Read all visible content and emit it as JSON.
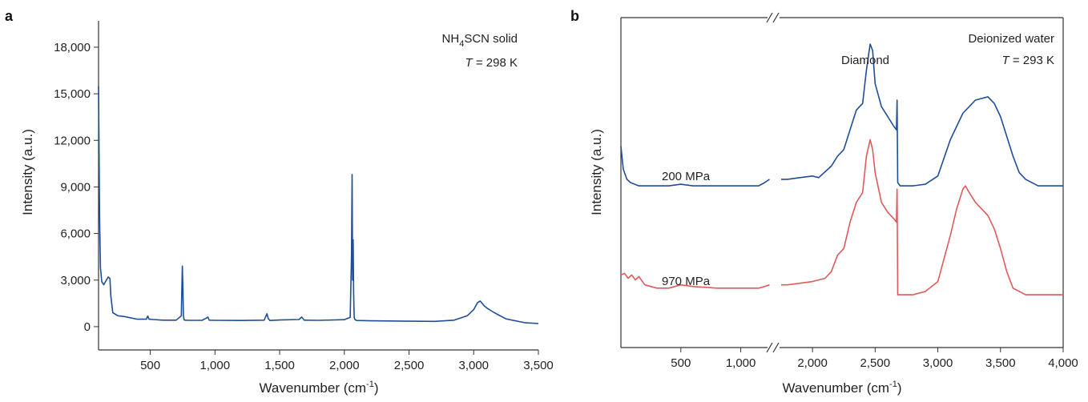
{
  "chart_data": [
    {
      "type": "line",
      "panel": "a",
      "xlabel": "Wavenumber (cm",
      "xlabel_sup": "-1",
      "xlabel_close": ")",
      "ylabel": "Intensity (a.u.)",
      "xlim": [
        100,
        3500
      ],
      "ylim": [
        -1500,
        19700
      ],
      "xticks": [
        500,
        1000,
        1500,
        2000,
        2500,
        3000,
        3500
      ],
      "xtick_labels": [
        "500",
        "1,000",
        "1,500",
        "2,000",
        "2,500",
        "3,000",
        "3,500"
      ],
      "yticks": [
        0,
        3000,
        6000,
        9000,
        12000,
        15000,
        18000
      ],
      "ytick_labels": [
        "0",
        "3,000",
        "6,000",
        "9,000",
        "12,000",
        "15,000",
        "18,000"
      ],
      "annotation": {
        "sample_prefix": "NH",
        "sample_sub": "4",
        "sample_suffix": "SCN solid",
        "temp_symbol": "T",
        "temp_value": " = 298 K"
      },
      "series": [
        {
          "name": "NH4SCN solid",
          "color": "#1f4e96",
          "x": [
            100,
            108,
            115,
            125,
            140,
            160,
            175,
            188,
            195,
            210,
            250,
            300,
            400,
            470,
            480,
            490,
            520,
            600,
            700,
            740,
            748,
            752,
            756,
            762,
            770,
            800,
            900,
            935,
            945,
            955,
            1000,
            1200,
            1380,
            1402,
            1412,
            1425,
            1500,
            1650,
            1670,
            1690,
            1800,
            2000,
            2045,
            2055,
            2060,
            2064,
            2068,
            2072,
            2076,
            2082,
            2095,
            2200,
            2500,
            2700,
            2850,
            2950,
            3000,
            3030,
            3050,
            3080,
            3110,
            3160,
            3250,
            3400,
            3500
          ],
          "y": [
            15500,
            7000,
            3800,
            2900,
            2700,
            3000,
            3200,
            3100,
            2000,
            900,
            700,
            650,
            480,
            480,
            680,
            480,
            460,
            420,
            420,
            700,
            3900,
            2500,
            700,
            430,
            420,
            410,
            410,
            560,
            620,
            420,
            410,
            400,
            420,
            830,
            520,
            400,
            430,
            460,
            620,
            420,
            410,
            450,
            600,
            4500,
            9800,
            3000,
            5600,
            2200,
            600,
            460,
            400,
            380,
            350,
            340,
            420,
            700,
            1100,
            1550,
            1650,
            1350,
            1150,
            900,
            500,
            250,
            200
          ]
        }
      ]
    },
    {
      "type": "line",
      "panel": "b",
      "xlabel": "Wavenumber (cm",
      "xlabel_sup": "-1",
      "xlabel_close": ")",
      "ylabel": "Intensity (a.u.)",
      "axis_break": "//",
      "segments": [
        {
          "xmin": 0,
          "xmax": 1250,
          "ticks": [
            500,
            1000
          ],
          "tick_labels": [
            "500",
            "1,000"
          ]
        },
        {
          "xmin": 1750,
          "xmax": 4000,
          "ticks": [
            2000,
            2500,
            3000,
            3500,
            4000
          ],
          "tick_labels": [
            "2,000",
            "2,500",
            "3,000",
            "3,500",
            "4,000"
          ]
        }
      ],
      "ylim": [
        0,
        100
      ],
      "peak_label": "Diamond",
      "annotation": {
        "sample": "Deionized water",
        "temp_symbol": "T",
        "temp_value": " = 293 K"
      },
      "series": [
        {
          "name": "200 MPa",
          "color": "#1f4e96",
          "x": [
            0,
            20,
            50,
            80,
            150,
            250,
            400,
            500,
            600,
            800,
            1000,
            1150,
            1200,
            1240,
            1750,
            1800,
            1900,
            2000,
            2050,
            2150,
            2200,
            2250,
            2300,
            2350,
            2400,
            2430,
            2460,
            2480,
            2500,
            2550,
            2600,
            2650,
            2670,
            2675,
            2680,
            2700,
            2800,
            2900,
            3000,
            3100,
            3200,
            3300,
            3400,
            3450,
            3500,
            3550,
            3600,
            3650,
            3700,
            3800,
            3900,
            4000
          ],
          "y": [
            61,
            54,
            51,
            50,
            49,
            49,
            49,
            49.5,
            49,
            49,
            49,
            49,
            50,
            51,
            51,
            51,
            51.5,
            52,
            51.5,
            55,
            58,
            60,
            66,
            72,
            74,
            84,
            92,
            90,
            80,
            73,
            70,
            67,
            66,
            75,
            50,
            49,
            49,
            49.5,
            52,
            63,
            71,
            75,
            76,
            74,
            70,
            64,
            58,
            53,
            51,
            49,
            49,
            49
          ]
        },
        {
          "name": "970 MPa",
          "color": "#e05a5a",
          "x": [
            0,
            30,
            60,
            90,
            120,
            150,
            200,
            300,
            400,
            500,
            600,
            800,
            1000,
            1150,
            1200,
            1240,
            1750,
            1800,
            1900,
            2000,
            2100,
            2150,
            2200,
            2250,
            2300,
            2350,
            2400,
            2430,
            2460,
            2480,
            2500,
            2550,
            2600,
            2650,
            2670,
            2675,
            2680,
            2700,
            2800,
            2900,
            3000,
            3100,
            3150,
            3200,
            3220,
            3250,
            3300,
            3400,
            3450,
            3500,
            3550,
            3600,
            3700,
            3800,
            3900,
            4000
          ],
          "y": [
            22,
            22.5,
            21,
            22,
            20.5,
            21.5,
            19,
            18,
            18,
            19,
            18.5,
            18,
            18,
            18,
            18.5,
            19,
            19,
            19,
            19.5,
            20,
            21,
            23,
            28,
            30,
            38,
            44,
            47,
            58,
            63,
            60,
            53,
            44,
            41,
            39,
            38,
            48,
            16,
            16,
            16,
            17,
            20,
            34,
            42,
            48,
            49,
            47,
            44,
            40,
            36,
            30,
            23,
            18,
            16,
            16,
            16,
            16
          ]
        }
      ]
    }
  ]
}
